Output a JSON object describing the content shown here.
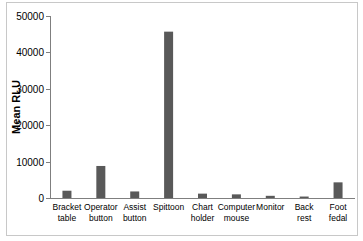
{
  "chart_data": {
    "type": "bar",
    "y_label": "Mean RLU",
    "categories": [
      "Bracket table",
      "Operator button",
      "Assist button",
      "Spittoon",
      "Chart holder",
      "Computer mouse",
      "Monitor",
      "Back rest",
      "Foot fedal"
    ],
    "values": [
      2000,
      8800,
      1800,
      45700,
      1200,
      1000,
      600,
      400,
      4300
    ],
    "color": "#595959",
    "ylim": [
      0,
      50000
    ],
    "yticks": [
      0,
      10000,
      20000,
      30000,
      40000,
      50000
    ],
    "grid": false
  }
}
